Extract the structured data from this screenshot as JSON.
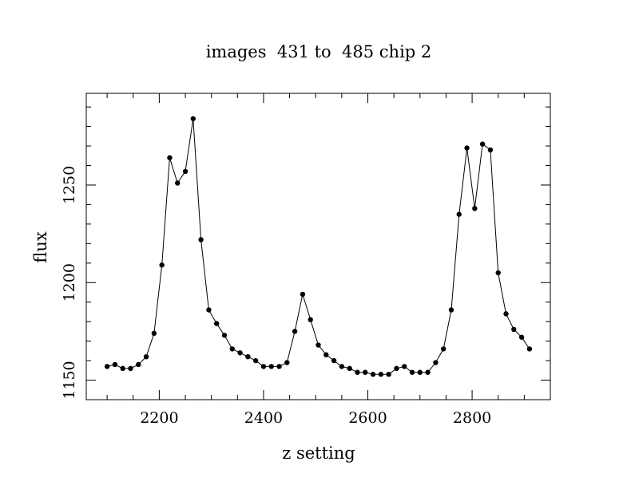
{
  "chart_data": {
    "type": "line",
    "title": "images  431 to  485 chip 2",
    "xlabel": "z setting",
    "ylabel": "flux",
    "xlim": [
      2060,
      2950
    ],
    "ylim": [
      1140,
      1297
    ],
    "xticks": [
      2200,
      2400,
      2600,
      2800
    ],
    "xtick_labels": [
      "2200",
      "2400",
      "2600",
      "2800"
    ],
    "yticks": [
      1150,
      1200,
      1250
    ],
    "ytick_labels": [
      "1150",
      "1200",
      "1250"
    ],
    "grid": false,
    "legend": "none",
    "markers": true,
    "color": "#000000",
    "x": [
      2100,
      2115,
      2130,
      2145,
      2160,
      2175,
      2190,
      2205,
      2220,
      2235,
      2250,
      2265,
      2280,
      2295,
      2310,
      2325,
      2340,
      2355,
      2370,
      2385,
      2400,
      2415,
      2430,
      2445,
      2460,
      2475,
      2490,
      2505,
      2520,
      2535,
      2550,
      2565,
      2580,
      2595,
      2610,
      2625,
      2640,
      2655,
      2670,
      2685,
      2700,
      2715,
      2730,
      2745,
      2760,
      2775,
      2790,
      2805,
      2820,
      2835,
      2850,
      2865,
      2880,
      2895,
      2910
    ],
    "y": [
      1157,
      1158,
      1156,
      1156,
      1158,
      1162,
      1174,
      1209,
      1264,
      1251,
      1257,
      1284,
      1222,
      1186,
      1179,
      1173,
      1166,
      1164,
      1162,
      1160,
      1157,
      1157,
      1157,
      1159,
      1175,
      1194,
      1181,
      1168,
      1163,
      1160,
      1157,
      1156,
      1154,
      1154,
      1153,
      1153,
      1153,
      1156,
      1157,
      1154,
      1154,
      1154,
      1159,
      1166,
      1186,
      1235,
      1269,
      1238,
      1271,
      1268,
      1205,
      1184,
      1176,
      1172,
      1166
    ]
  }
}
